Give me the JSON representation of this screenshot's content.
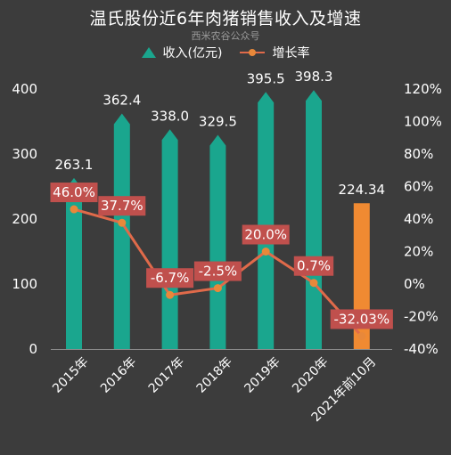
{
  "title": "温氏股份近6年肉猪销售收入及增速",
  "subtitle": "西米农谷公众号",
  "legend": {
    "revenue": "收入(亿元)",
    "growth": "增长率"
  },
  "colors": {
    "bar": "#1aa68e",
    "bar_highlight": "#f08a32",
    "line": "#e06a4a",
    "dot": "#e8883a",
    "label_bg": "#c0504d"
  },
  "chart_data": {
    "type": "bar",
    "categories": [
      "2015年",
      "2016年",
      "2017年",
      "2018年",
      "2019年",
      "2020年",
      "2021年前10月"
    ],
    "series": [
      {
        "name": "收入(亿元)",
        "type": "bar",
        "axis": "left",
        "values": [
          263.1,
          362.4,
          338.0,
          329.5,
          395.5,
          398.3,
          224.34
        ],
        "labels": [
          "263.1",
          "362.4",
          "338.0",
          "329.5",
          "395.5",
          "398.3",
          "224.34"
        ]
      },
      {
        "name": "增长率",
        "type": "line",
        "axis": "right",
        "values": [
          46.0,
          37.7,
          -6.7,
          -2.5,
          20.0,
          0.7,
          -32.03
        ],
        "labels": [
          "46.0%",
          "37.7%",
          "-6.7%",
          "-2.5%",
          "20.0%",
          "0.7%",
          "-32.03%"
        ]
      }
    ],
    "y_left": {
      "ylim": [
        0,
        400
      ],
      "ticks": [
        0,
        100,
        200,
        300,
        400
      ]
    },
    "y_right": {
      "ylim": [
        -40,
        120
      ],
      "ticks": [
        -40,
        -20,
        0,
        20,
        40,
        60,
        80,
        100,
        120
      ],
      "tick_labels": [
        "-40%",
        "-20%",
        "0%",
        "20%",
        "40%",
        "60%",
        "80%",
        "100%",
        "120%"
      ]
    },
    "grid": false,
    "legend_position": "top"
  }
}
